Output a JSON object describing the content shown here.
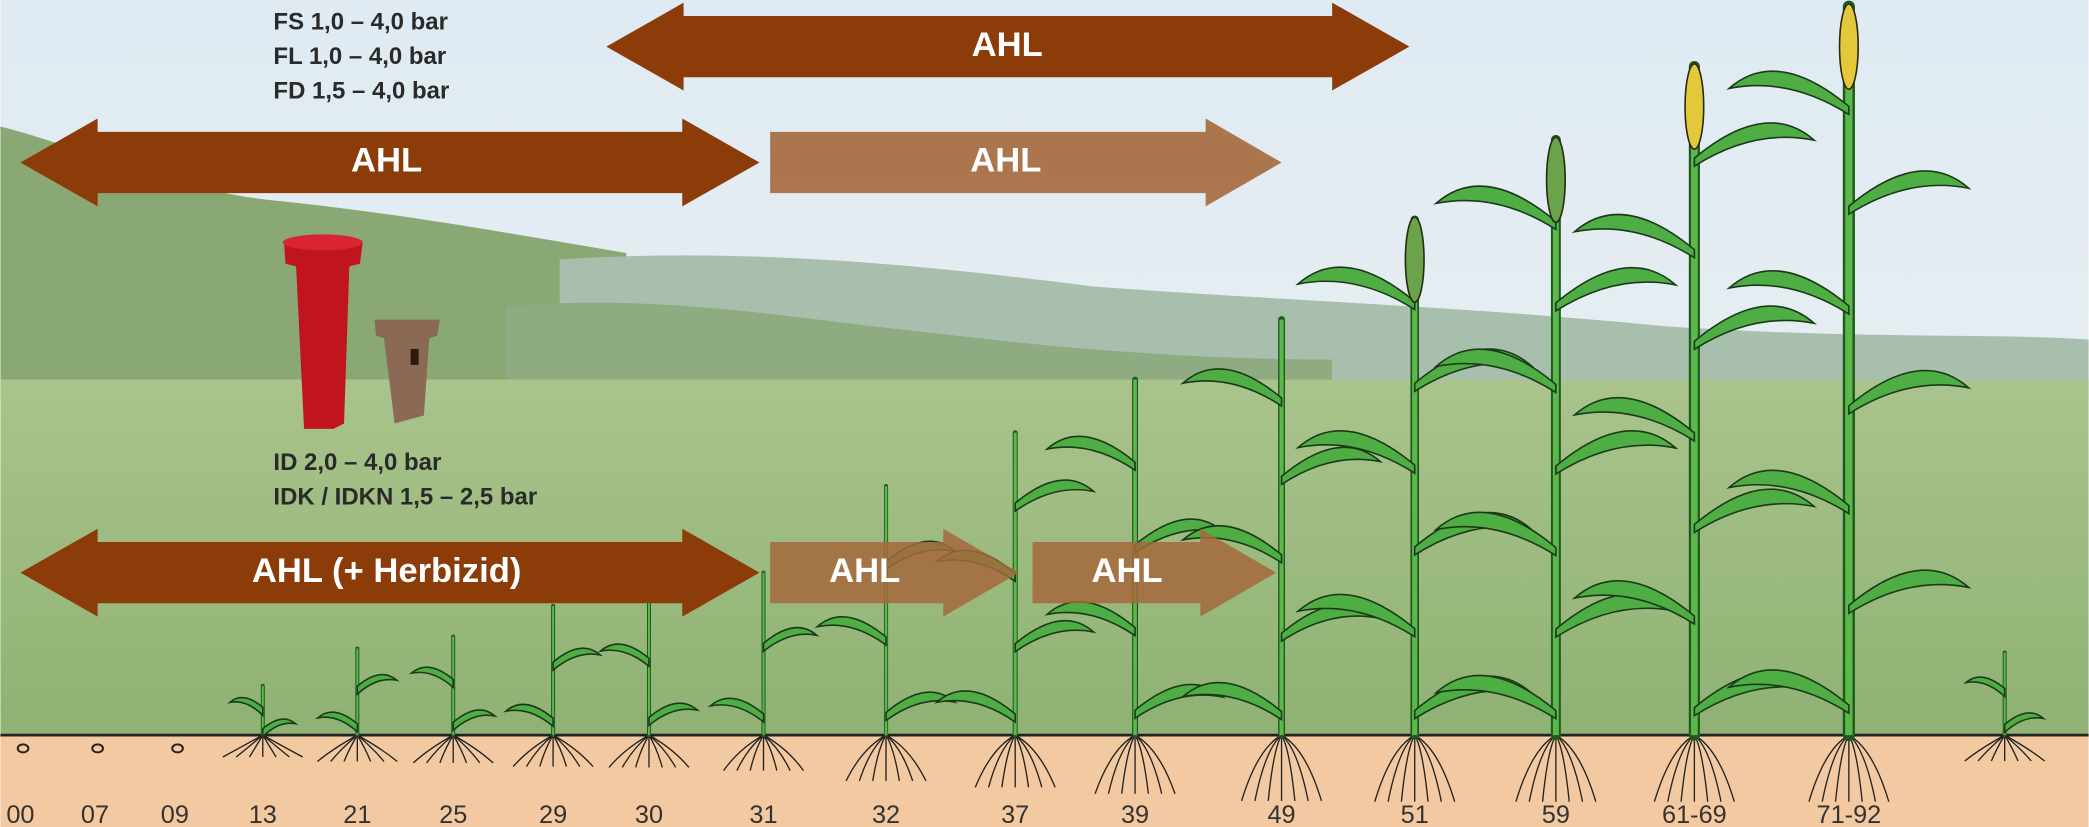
{
  "nozzle_groups": [
    {
      "lines": [
        "FS 1,0 – 4,0 bar",
        "FL 1,0 – 4,0 bar",
        "FD 1,5 – 4,0 bar"
      ]
    },
    {
      "lines": [
        "ID 2,0 – 4,0 bar",
        "IDK / IDKN 1,5 – 2,5 bar"
      ]
    }
  ],
  "arrows": [
    {
      "label": "AHL"
    },
    {
      "label": "AHL"
    },
    {
      "label": "AHL"
    },
    {
      "label": "AHL (+ Herbizid)"
    },
    {
      "label": "AHL"
    },
    {
      "label": "AHL"
    }
  ],
  "growth_stages": [
    "00",
    "07",
    "09",
    "13",
    "21",
    "25",
    "29",
    "30",
    "31",
    "32",
    "37",
    "39",
    "49",
    "51",
    "59",
    "61-69",
    "71-92"
  ]
}
